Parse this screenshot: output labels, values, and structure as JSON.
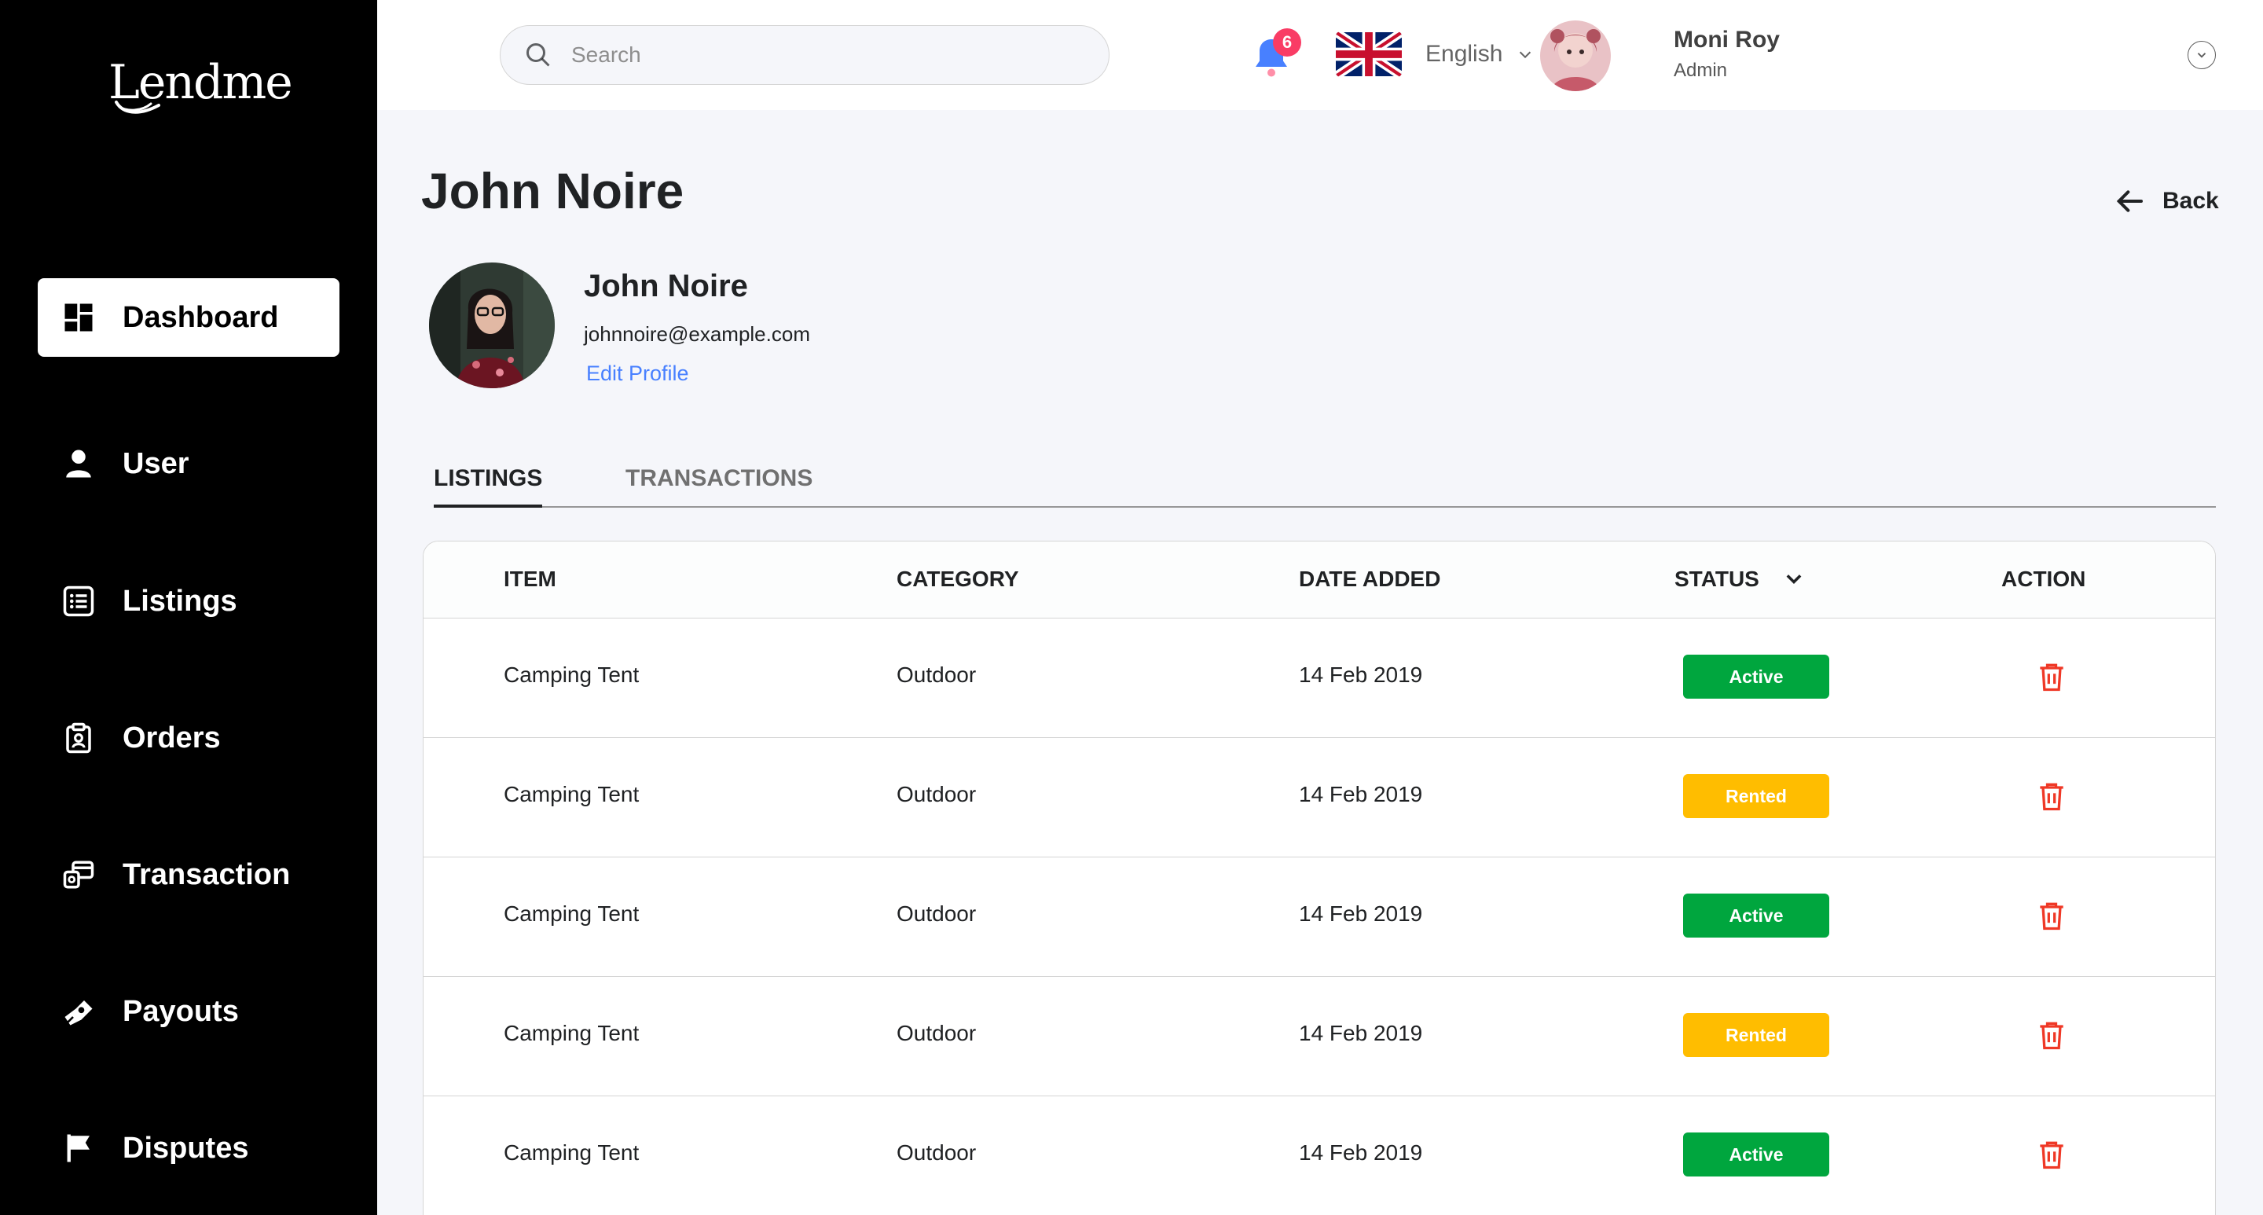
{
  "sidebar": {
    "logo": "Lendme",
    "items": [
      {
        "label": "Dashboard",
        "icon": "dashboard-icon",
        "active": true
      },
      {
        "label": "User",
        "icon": "user-icon"
      },
      {
        "label": "Listings",
        "icon": "list-icon"
      },
      {
        "label": "Orders",
        "icon": "clipboard-icon"
      },
      {
        "label": "Transaction",
        "icon": "transaction-icon"
      },
      {
        "label": "Payouts",
        "icon": "payout-icon"
      },
      {
        "label": "Disputes",
        "icon": "flag-icon"
      }
    ]
  },
  "header": {
    "search_placeholder": "Search",
    "notification_count": "6",
    "language": "English",
    "user_name": "Moni Roy",
    "user_role": "Admin"
  },
  "page": {
    "title": "John Noire",
    "back_label": "Back"
  },
  "profile": {
    "name": "John Noire",
    "email": "johnnoire@example.com",
    "edit_label": "Edit Profile"
  },
  "tabs": [
    {
      "label": "LISTINGS",
      "active": true
    },
    {
      "label": "TRANSACTIONS",
      "active": false
    }
  ],
  "table": {
    "headers": {
      "item": "ITEM",
      "category": "CATEGORY",
      "date": "DATE ADDED",
      "status": "STATUS",
      "action": "ACTION"
    },
    "rows": [
      {
        "item": "Camping Tent",
        "category": "Outdoor",
        "date": "14 Feb 2019",
        "status": "Active"
      },
      {
        "item": "Camping Tent",
        "category": "Outdoor",
        "date": "14 Feb 2019",
        "status": "Rented"
      },
      {
        "item": "Camping Tent",
        "category": "Outdoor",
        "date": "14 Feb 2019",
        "status": "Active"
      },
      {
        "item": "Camping Tent",
        "category": "Outdoor",
        "date": "14 Feb 2019",
        "status": "Rented"
      },
      {
        "item": "Camping Tent",
        "category": "Outdoor",
        "date": "14 Feb 2019",
        "status": "Active"
      }
    ]
  },
  "colors": {
    "active": "#00a63e",
    "rented": "#ffbd00",
    "delete": "#ef3826",
    "link": "#4880ff"
  }
}
